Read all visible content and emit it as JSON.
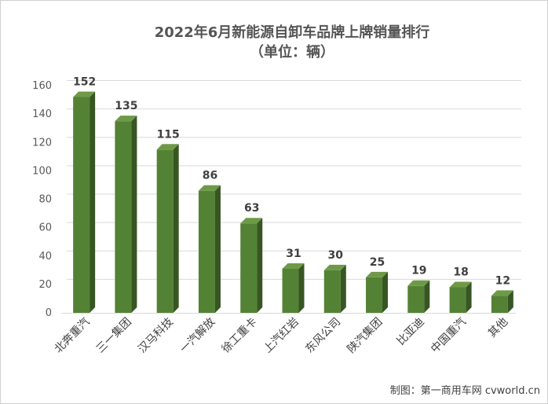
{
  "chart_data": {
    "type": "bar",
    "title": "2022年6月新能源自卸车品牌上牌销量排行",
    "subtitle": "（单位：辆）",
    "categories": [
      "北奔重汽",
      "三一集团",
      "汉马科技",
      "一汽解放",
      "徐工重卡",
      "上汽红岩",
      "东风公司",
      "陕汽集团",
      "比亚迪",
      "中国重汽",
      "其他"
    ],
    "values": [
      152,
      135,
      115,
      86,
      63,
      31,
      30,
      25,
      19,
      18,
      12
    ],
    "data_labels": [
      "152",
      "135",
      "115",
      "86",
      "63",
      "31",
      "30",
      "25",
      "19",
      "18",
      "12"
    ],
    "ylim": [
      0,
      160
    ],
    "yticks": [
      "0",
      "20",
      "40",
      "60",
      "80",
      "100",
      "120",
      "140",
      "160"
    ],
    "grid": true,
    "colors": {
      "bar_front": "#548235",
      "bar_side": "#375623",
      "bar_top": "#6e9a48",
      "grid": "#d9d9d9"
    }
  },
  "credit": "制图：第一商用车网 cvworld.cn"
}
